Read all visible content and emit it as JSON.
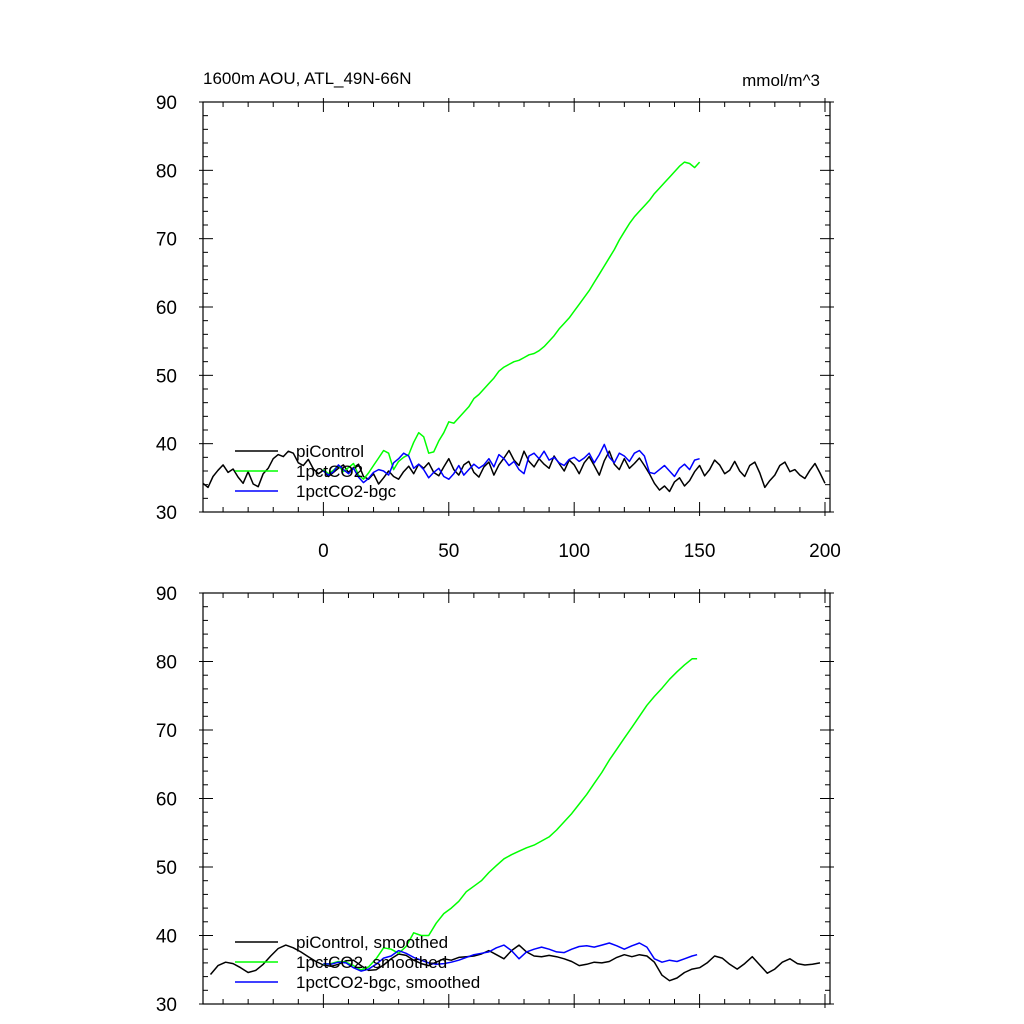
{
  "header": {
    "title": "1600m AOU, ATL_49N-66N",
    "units": "mmol/m^3"
  },
  "chart_data": [
    {
      "type": "line",
      "panel": "top",
      "xlim": [
        -48,
        202
      ],
      "ylim": [
        30,
        90
      ],
      "xticks": [
        0,
        50,
        100,
        150,
        200
      ],
      "xtick_labels": [
        "0",
        "50",
        "100",
        "150",
        "200"
      ],
      "yticks": [
        30,
        40,
        50,
        60,
        70,
        80,
        90
      ],
      "ytick_labels": [
        "30",
        "40",
        "50",
        "60",
        "70",
        "80",
        "90"
      ],
      "legend": "lower-left",
      "series": [
        {
          "name": "piControl",
          "color": "#000000",
          "x": [
            -48,
            -46,
            -44,
            -42,
            -40,
            -38,
            -36,
            -34,
            -32,
            -30,
            -28,
            -26,
            -24,
            -22,
            -20,
            -18,
            -16,
            -14,
            -12,
            -10,
            -8,
            -6,
            -4,
            -2,
            0,
            2,
            4,
            6,
            8,
            10,
            12,
            14,
            16,
            18,
            20,
            22,
            24,
            26,
            28,
            30,
            32,
            34,
            36,
            38,
            40,
            42,
            44,
            46,
            48,
            50,
            52,
            54,
            56,
            58,
            60,
            62,
            64,
            66,
            68,
            70,
            72,
            74,
            76,
            78,
            80,
            82,
            84,
            86,
            88,
            90,
            92,
            94,
            96,
            98,
            100,
            102,
            104,
            106,
            108,
            110,
            112,
            114,
            116,
            118,
            120,
            122,
            124,
            126,
            128,
            130,
            132,
            134,
            136,
            138,
            140,
            142,
            144,
            146,
            148,
            150,
            152,
            154,
            156,
            158,
            160,
            162,
            164,
            166,
            168,
            170,
            172,
            174,
            176,
            178,
            180,
            182,
            184,
            186,
            188,
            190,
            192,
            194,
            196,
            198,
            200
          ],
          "values": [
            34.2,
            33.6,
            35.2,
            36.1,
            36.9,
            35.8,
            36.3,
            35.1,
            34.2,
            35.9,
            34.1,
            33.7,
            35.6,
            36.4,
            37.8,
            38.4,
            38.1,
            38.9,
            38.6,
            37.2,
            36.8,
            37.7,
            36.3,
            35.6,
            36.1,
            35.2,
            35.8,
            36.4,
            36.9,
            35.8,
            36.5,
            37.0,
            35.2,
            34.8,
            35.6,
            34.1,
            35.0,
            36.0,
            35.2,
            34.8,
            35.9,
            36.7,
            35.6,
            37.0,
            36.4,
            37.2,
            35.8,
            35.3,
            36.6,
            37.8,
            36.2,
            35.4,
            36.9,
            37.4,
            35.8,
            35.1,
            36.6,
            37.3,
            35.4,
            36.9,
            37.9,
            39.0,
            37.6,
            36.8,
            38.9,
            37.4,
            36.6,
            37.8,
            37.0,
            36.4,
            38.2,
            37.1,
            36.0,
            37.6,
            36.9,
            35.6,
            37.2,
            38.1,
            36.8,
            35.4,
            37.5,
            38.9,
            37.0,
            36.2,
            37.8,
            36.4,
            37.1,
            37.9,
            36.8,
            35.6,
            34.2,
            33.2,
            33.8,
            33.0,
            34.4,
            35.0,
            33.8,
            34.6,
            35.9,
            36.8,
            35.3,
            36.2,
            37.6,
            36.9,
            35.6,
            36.1,
            37.4,
            36.0,
            35.2,
            36.8,
            37.3,
            35.7,
            33.6,
            34.6,
            35.4,
            36.8,
            37.3,
            35.9,
            36.2,
            35.4,
            34.9,
            36.1,
            37.1,
            35.7,
            34.2
          ]
        },
        {
          "name": "1pctCO2",
          "color": "#00ff00",
          "x": [
            0,
            2,
            4,
            6,
            8,
            10,
            12,
            14,
            16,
            18,
            20,
            22,
            24,
            26,
            28,
            30,
            32,
            34,
            36,
            38,
            40,
            42,
            44,
            46,
            48,
            50,
            52,
            54,
            56,
            58,
            60,
            62,
            64,
            66,
            68,
            70,
            72,
            74,
            76,
            78,
            80,
            82,
            84,
            86,
            88,
            90,
            92,
            94,
            96,
            98,
            100,
            102,
            104,
            106,
            108,
            110,
            112,
            114,
            116,
            118,
            120,
            122,
            124,
            126,
            128,
            130,
            132,
            134,
            136,
            138,
            140,
            142,
            144,
            146,
            148,
            150
          ],
          "values": [
            36.2,
            35.6,
            36.1,
            36.8,
            35.9,
            36.5,
            37.1,
            35.4,
            34.8,
            35.7,
            36.8,
            37.9,
            39.0,
            38.6,
            36.2,
            37.4,
            38.0,
            38.4,
            40.2,
            41.6,
            41.0,
            38.6,
            38.8,
            40.4,
            41.6,
            43.2,
            43.0,
            43.8,
            44.6,
            45.4,
            46.6,
            47.2,
            48.0,
            48.8,
            49.6,
            50.6,
            51.2,
            51.6,
            52.0,
            52.2,
            52.6,
            53.0,
            53.2,
            53.6,
            54.2,
            55.0,
            55.8,
            56.8,
            57.6,
            58.4,
            59.4,
            60.4,
            61.4,
            62.4,
            63.6,
            64.8,
            66.0,
            67.2,
            68.4,
            69.8,
            71.0,
            72.2,
            73.2,
            74.0,
            74.8,
            75.6,
            76.6,
            77.4,
            78.2,
            79.0,
            79.8,
            80.6,
            81.2,
            81.0,
            80.4,
            81.2
          ]
        },
        {
          "name": "1pctCO2-bgc",
          "color": "#0000ff",
          "x": [
            0,
            2,
            4,
            6,
            8,
            10,
            12,
            14,
            16,
            18,
            20,
            22,
            24,
            26,
            28,
            30,
            32,
            34,
            36,
            38,
            40,
            42,
            44,
            46,
            48,
            50,
            52,
            54,
            56,
            58,
            60,
            62,
            64,
            66,
            68,
            70,
            72,
            74,
            76,
            78,
            80,
            82,
            84,
            86,
            88,
            90,
            92,
            94,
            96,
            98,
            100,
            102,
            104,
            106,
            108,
            110,
            112,
            114,
            116,
            118,
            120,
            122,
            124,
            126,
            128,
            130,
            132,
            134,
            136,
            138,
            140,
            142,
            144,
            146,
            148,
            150
          ],
          "values": [
            36.0,
            35.4,
            35.9,
            36.9,
            36.2,
            35.6,
            36.4,
            35.1,
            34.3,
            34.9,
            35.8,
            36.2,
            36.0,
            35.4,
            37.2,
            37.8,
            38.6,
            38.2,
            36.4,
            37.0,
            36.2,
            35.0,
            35.8,
            36.4,
            35.2,
            34.8,
            35.6,
            36.8,
            35.4,
            36.2,
            37.0,
            36.4,
            36.9,
            37.8,
            36.6,
            38.4,
            37.8,
            36.8,
            37.4,
            36.2,
            35.6,
            38.2,
            38.6,
            37.8,
            38.9,
            37.6,
            38.0,
            37.2,
            36.8,
            37.7,
            38.0,
            37.4,
            37.9,
            38.6,
            37.2,
            38.4,
            39.9,
            38.0,
            37.2,
            38.6,
            38.2,
            37.4,
            38.6,
            39.0,
            38.2,
            35.8,
            35.6,
            36.2,
            36.8,
            36.0,
            35.2,
            36.4,
            37.0,
            36.2,
            37.6,
            37.8
          ]
        }
      ]
    },
    {
      "type": "line",
      "panel": "bottom",
      "xlim": [
        -48,
        202
      ],
      "ylim": [
        30,
        90
      ],
      "xticks": [
        0,
        50,
        100,
        150,
        200
      ],
      "yticks": [
        30,
        40,
        50,
        60,
        70,
        80,
        90
      ],
      "ytick_labels": [
        "30",
        "40",
        "50",
        "60",
        "70",
        "80",
        "90"
      ],
      "legend": "lower-left",
      "series": [
        {
          "name": "piControl, smoothed",
          "color": "#000000",
          "x": [
            -45,
            -42,
            -39,
            -36,
            -33,
            -30,
            -27,
            -24,
            -21,
            -18,
            -15,
            -12,
            -9,
            -6,
            -3,
            0,
            3,
            6,
            9,
            12,
            15,
            18,
            21,
            24,
            27,
            30,
            33,
            36,
            39,
            42,
            45,
            48,
            51,
            54,
            57,
            60,
            63,
            66,
            69,
            72,
            75,
            78,
            81,
            84,
            87,
            90,
            93,
            96,
            99,
            102,
            105,
            108,
            111,
            114,
            117,
            120,
            123,
            126,
            129,
            132,
            135,
            138,
            141,
            144,
            147,
            150,
            153,
            156,
            159,
            162,
            165,
            168,
            171,
            174,
            177,
            180,
            183,
            186,
            189,
            192,
            195,
            198
          ],
          "values": [
            34.3,
            35.6,
            36.1,
            35.9,
            35.3,
            34.6,
            34.9,
            35.8,
            37.0,
            38.1,
            38.6,
            38.2,
            37.6,
            36.9,
            36.2,
            35.7,
            35.5,
            35.8,
            36.3,
            36.4,
            35.6,
            34.9,
            35.0,
            35.7,
            36.6,
            37.3,
            37.1,
            36.4,
            35.9,
            35.6,
            36.1,
            36.6,
            36.4,
            36.8,
            36.9,
            37.0,
            37.3,
            37.8,
            37.2,
            36.6,
            37.8,
            38.6,
            37.6,
            37.0,
            36.9,
            37.1,
            36.9,
            36.6,
            36.2,
            35.6,
            35.8,
            36.1,
            36.0,
            36.2,
            36.8,
            37.2,
            36.9,
            37.2,
            37.0,
            36.1,
            34.2,
            33.4,
            33.8,
            34.6,
            35.1,
            35.3,
            36.0,
            37.0,
            36.7,
            35.8,
            35.1,
            35.9,
            36.9,
            35.7,
            34.5,
            35.1,
            36.1,
            36.6,
            35.9,
            35.7,
            35.8,
            36.0
          ]
        },
        {
          "name": "1pctCO2, smoothed",
          "color": "#00ff00",
          "x": [
            0,
            3,
            6,
            9,
            12,
            15,
            18,
            21,
            24,
            27,
            30,
            33,
            36,
            39,
            42,
            45,
            48,
            51,
            54,
            57,
            60,
            63,
            66,
            69,
            72,
            75,
            78,
            81,
            84,
            87,
            90,
            93,
            96,
            99,
            102,
            105,
            108,
            111,
            114,
            117,
            120,
            123,
            126,
            129,
            132,
            135,
            138,
            141,
            144,
            147,
            149
          ],
          "values": [
            35.8,
            35.9,
            36.2,
            36.1,
            35.6,
            35.0,
            35.4,
            36.6,
            38.2,
            38.0,
            37.4,
            38.4,
            40.4,
            40.0,
            40.0,
            41.8,
            43.2,
            44.0,
            45.0,
            46.4,
            47.2,
            48.0,
            49.2,
            50.2,
            51.2,
            51.8,
            52.3,
            52.8,
            53.2,
            53.8,
            54.4,
            55.4,
            56.6,
            57.8,
            59.2,
            60.6,
            62.2,
            63.8,
            65.6,
            67.2,
            68.8,
            70.4,
            72.0,
            73.6,
            74.9,
            76.1,
            77.4,
            78.5,
            79.5,
            80.4,
            80.4
          ]
        },
        {
          "name": "1pctCO2-bgc, smoothed",
          "color": "#0000ff",
          "x": [
            0,
            3,
            6,
            9,
            12,
            15,
            18,
            21,
            24,
            27,
            30,
            33,
            36,
            39,
            42,
            45,
            48,
            51,
            54,
            57,
            60,
            63,
            66,
            69,
            72,
            75,
            78,
            81,
            84,
            87,
            90,
            93,
            96,
            99,
            102,
            105,
            108,
            111,
            114,
            117,
            120,
            123,
            126,
            129,
            132,
            135,
            138,
            141,
            144,
            147,
            149
          ],
          "values": [
            35.9,
            35.8,
            36.1,
            36.0,
            35.3,
            34.8,
            35.1,
            35.8,
            36.7,
            37.0,
            37.8,
            37.4,
            36.8,
            36.4,
            36.0,
            35.8,
            35.9,
            36.1,
            36.4,
            36.8,
            37.2,
            37.4,
            37.6,
            38.2,
            38.6,
            37.8,
            36.6,
            37.6,
            38.0,
            38.3,
            38.0,
            37.6,
            37.5,
            38.0,
            38.4,
            38.5,
            38.3,
            38.6,
            38.9,
            38.5,
            38.0,
            38.5,
            38.9,
            38.3,
            36.6,
            36.1,
            36.4,
            36.2,
            36.6,
            37.0,
            37.2
          ]
        }
      ]
    }
  ]
}
